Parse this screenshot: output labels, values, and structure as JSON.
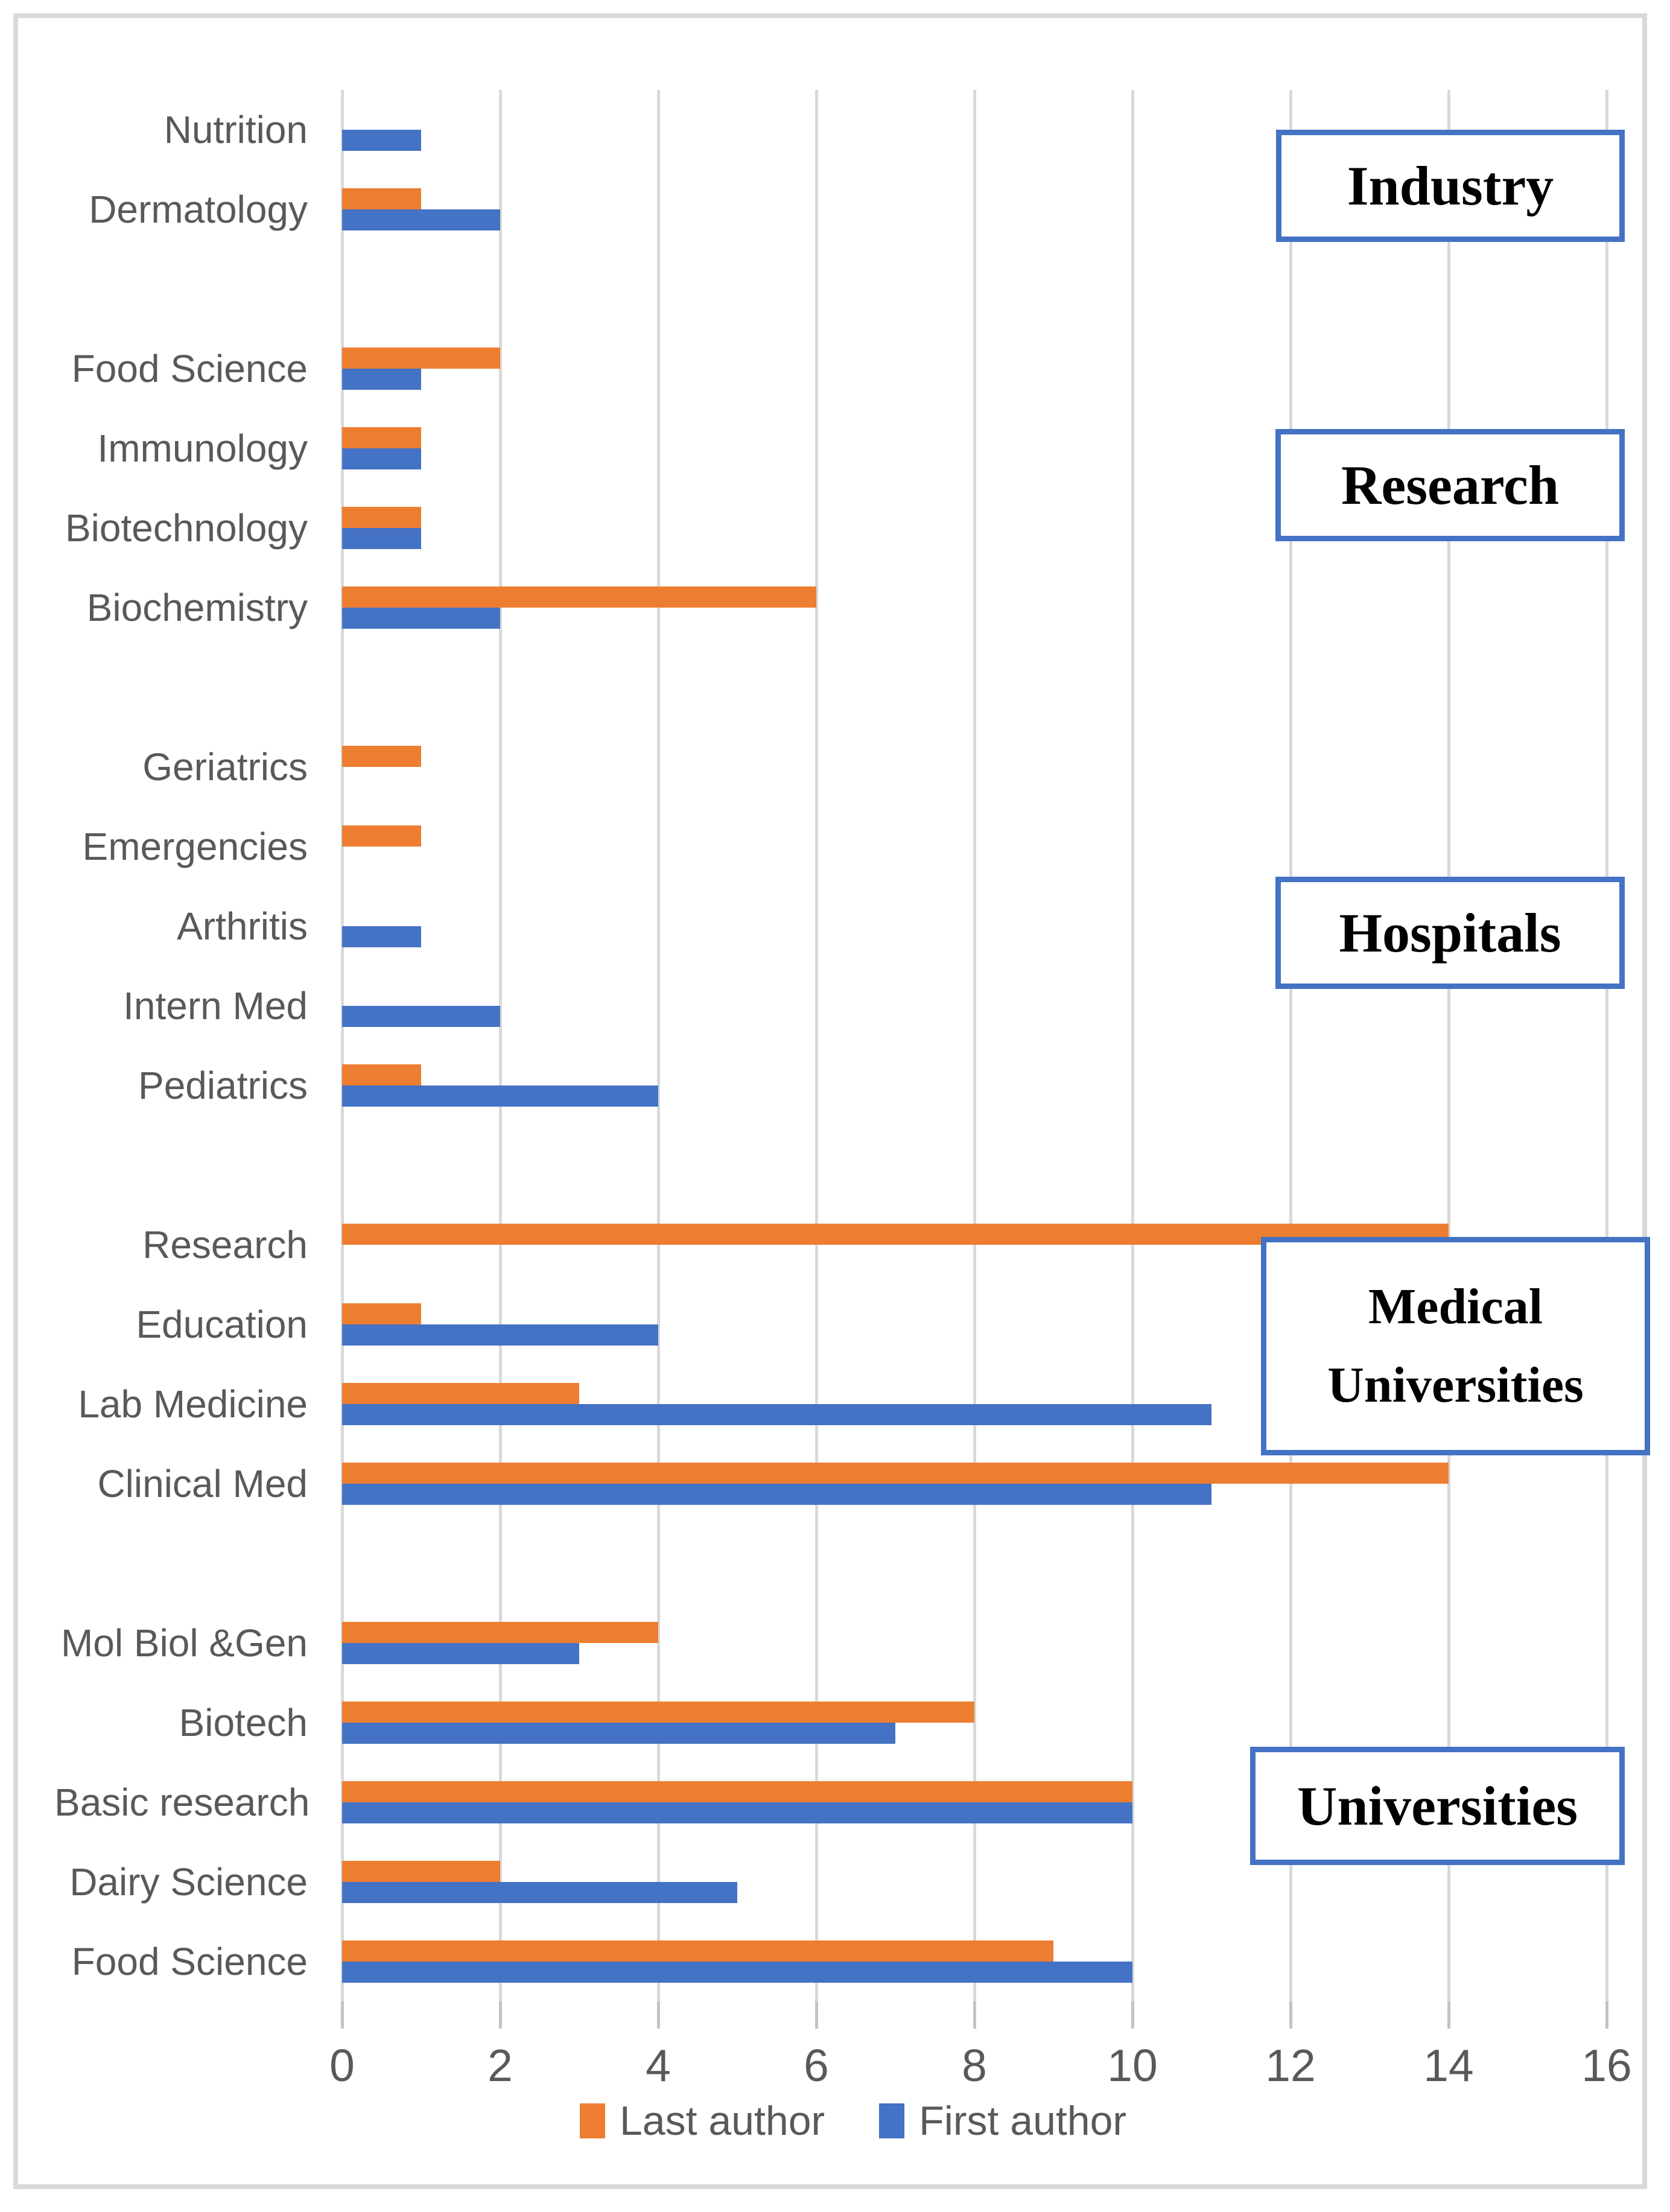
{
  "chart_data": {
    "type": "bar",
    "orientation": "horizontal",
    "title": "",
    "x_axis": {
      "ticks": [
        0,
        2,
        4,
        6,
        8,
        10,
        12,
        14,
        16
      ],
      "min": 0,
      "max": 16,
      "gridlines": true
    },
    "legend_position": "bottom",
    "legend": [
      {
        "label": "Last author",
        "color": "#ED7D31"
      },
      {
        "label": "First author",
        "color": "#4472C4"
      }
    ],
    "colors": {
      "last_author": "#ED7D31",
      "first_author": "#4472C4",
      "gridline": "#D9D9D9",
      "frame_border": "#D9D9D9",
      "axis_text": "#595959",
      "group_box_border": "#4472C4"
    },
    "groups": [
      {
        "label": "Industry",
        "label_lines": [
          "Industry"
        ],
        "categories": [
          {
            "name": "Nutrition",
            "last_author": 0,
            "first_author": 1
          },
          {
            "name": "Dermatology",
            "last_author": 1,
            "first_author": 2
          }
        ]
      },
      {
        "label": "Research",
        "label_lines": [
          "Research"
        ],
        "categories": [
          {
            "name": "Food Science",
            "last_author": 2,
            "first_author": 1
          },
          {
            "name": "Immunology",
            "last_author": 1,
            "first_author": 1
          },
          {
            "name": "Biotechnology",
            "last_author": 1,
            "first_author": 1
          },
          {
            "name": "Biochemistry",
            "last_author": 6,
            "first_author": 2
          }
        ]
      },
      {
        "label": "Hospitals",
        "label_lines": [
          "Hospitals"
        ],
        "categories": [
          {
            "name": "Geriatrics",
            "last_author": 1,
            "first_author": 0
          },
          {
            "name": "Emergencies",
            "last_author": 1,
            "first_author": 0
          },
          {
            "name": "Arthritis",
            "last_author": 0,
            "first_author": 1
          },
          {
            "name": "Intern Med",
            "last_author": 0,
            "first_author": 2
          },
          {
            "name": "Pediatrics",
            "last_author": 1,
            "first_author": 4
          }
        ]
      },
      {
        "label": "Medical Universities",
        "label_lines": [
          "Medical",
          "Universities"
        ],
        "categories": [
          {
            "name": "Research",
            "last_author": 14,
            "first_author": 0
          },
          {
            "name": "Education",
            "last_author": 1,
            "first_author": 4
          },
          {
            "name": "Lab Medicine",
            "last_author": 3,
            "first_author": 11
          },
          {
            "name": "Clinical Med",
            "last_author": 14,
            "first_author": 11
          }
        ]
      },
      {
        "label": "Universities",
        "label_lines": [
          "Universities"
        ],
        "categories": [
          {
            "name": "Mol Biol &Gen",
            "last_author": 4,
            "first_author": 3
          },
          {
            "name": "Biotech",
            "last_author": 8,
            "first_author": 7
          },
          {
            "name": "Basic research",
            "last_author": 10,
            "first_author": 10
          },
          {
            "name": "Dairy Science",
            "last_author": 2,
            "first_author": 5
          },
          {
            "name": "Food Science",
            "last_author": 9,
            "first_author": 10
          }
        ]
      }
    ]
  }
}
